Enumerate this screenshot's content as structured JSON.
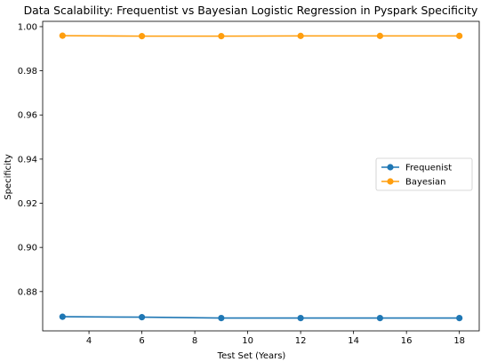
{
  "chart_data": {
    "type": "line",
    "title": "Data Scalability: Frequentist vs Bayesian Logistic Regression in Pyspark Specificity",
    "xlabel": "Test Set (Years)",
    "ylabel": "Specificity",
    "x": [
      3,
      6,
      9,
      12,
      15,
      18
    ],
    "xlim": [
      2.25,
      18.75
    ],
    "ylim": [
      0.8622,
      1.0024
    ],
    "xticks": [
      4,
      6,
      8,
      10,
      12,
      14,
      16,
      18
    ],
    "yticks": [
      0.88,
      0.9,
      0.92,
      0.94,
      0.96,
      0.98,
      1.0
    ],
    "ytick_labels": [
      "0.88",
      "0.90",
      "0.92",
      "0.94",
      "0.96",
      "0.98",
      "1.00"
    ],
    "grid": false,
    "legend_position": "center-right",
    "series": [
      {
        "name": "Frequenist",
        "color": "#1f77b4",
        "values": [
          0.8686,
          0.8684,
          0.868,
          0.868,
          0.868,
          0.868
        ]
      },
      {
        "name": "Bayesian",
        "color": "#ff9e0e",
        "values": [
          0.9959,
          0.9957,
          0.9957,
          0.9958,
          0.9958,
          0.9958
        ]
      }
    ]
  }
}
